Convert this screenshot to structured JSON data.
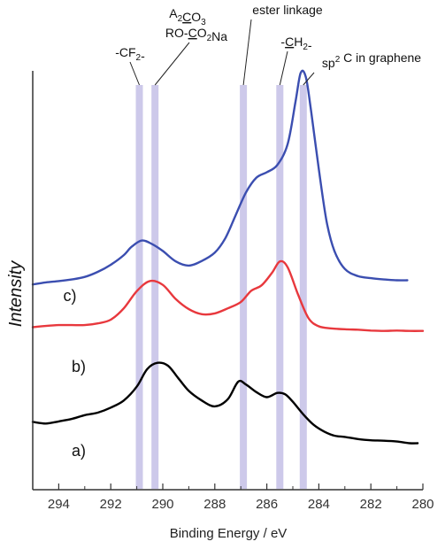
{
  "chart_data": {
    "type": "line",
    "xlabel": "Binding Energy / eV",
    "ylabel": "Intensity",
    "x_reversed": true,
    "xlim": [
      295,
      280
    ],
    "ylim": [
      0,
      1
    ],
    "x_ticks": [
      "294",
      "292",
      "290",
      "288",
      "286",
      "284",
      "282",
      "280"
    ],
    "x_tick_values": [
      294,
      292,
      290,
      288,
      286,
      284,
      282,
      280
    ],
    "bands": [
      {
        "label_parts": [
          [
            "-CF",
            ""
          ],
          [
            "2",
            "sub"
          ],
          [
            "-",
            ""
          ]
        ],
        "x": 290.9
      },
      {
        "label_parts": [
          [
            "RO-",
            ""
          ],
          [
            "C",
            "u"
          ],
          [
            "O",
            ""
          ],
          [
            "2",
            "sub"
          ],
          [
            "Na",
            ""
          ]
        ],
        "x": 290.3
      },
      {
        "label_parts": [
          [
            "A",
            ""
          ],
          [
            "2",
            "sub"
          ],
          [
            "C",
            "u"
          ],
          [
            "O",
            ""
          ],
          [
            "3",
            "sub"
          ]
        ],
        "x": 290.3,
        "line": false
      },
      {
        "label_parts": [
          [
            "ester linkage",
            ""
          ]
        ],
        "x": 286.9
      },
      {
        "label_parts": [
          [
            "-",
            ""
          ],
          [
            "C",
            "u"
          ],
          [
            "H",
            ""
          ],
          [
            "2",
            "sub"
          ],
          [
            "-",
            ""
          ]
        ],
        "x": 285.5
      },
      {
        "label_parts": [
          [
            "sp",
            ""
          ],
          [
            "2",
            "sup"
          ],
          [
            " C in graphene",
            ""
          ]
        ],
        "x": 284.6
      }
    ],
    "series": [
      {
        "label": "a)",
        "color": "#000000",
        "x": [
          295.0,
          294.5,
          294.0,
          293.5,
          293.0,
          292.5,
          292.0,
          291.5,
          291.0,
          290.6,
          290.2,
          289.8,
          289.4,
          289.0,
          288.5,
          288.0,
          287.5,
          287.1,
          286.8,
          286.4,
          286.0,
          285.6,
          285.3,
          285.0,
          284.6,
          284.2,
          283.8,
          283.4,
          283.0,
          282.5,
          282.0,
          281.5,
          281.0,
          280.5,
          280.2
        ],
        "y": [
          0.162,
          0.158,
          0.163,
          0.169,
          0.178,
          0.184,
          0.196,
          0.213,
          0.246,
          0.288,
          0.303,
          0.296,
          0.266,
          0.236,
          0.213,
          0.199,
          0.216,
          0.258,
          0.251,
          0.233,
          0.221,
          0.231,
          0.228,
          0.21,
          0.18,
          0.155,
          0.139,
          0.129,
          0.126,
          0.121,
          0.118,
          0.117,
          0.115,
          0.111,
          0.111
        ]
      },
      {
        "label": "b)",
        "color": "#e8383d",
        "x": [
          295.0,
          294.5,
          294.0,
          293.5,
          293.0,
          292.5,
          292.0,
          291.5,
          291.0,
          290.5,
          290.0,
          289.5,
          289.0,
          288.5,
          288.0,
          287.5,
          287.0,
          286.6,
          286.2,
          285.8,
          285.5,
          285.2,
          284.8,
          284.4,
          284.0,
          283.5,
          283.0,
          282.5,
          282.0,
          281.5,
          281.0,
          280.5,
          280.0
        ],
        "y": [
          0.388,
          0.391,
          0.393,
          0.393,
          0.393,
          0.397,
          0.406,
          0.433,
          0.474,
          0.498,
          0.489,
          0.455,
          0.431,
          0.419,
          0.421,
          0.433,
          0.448,
          0.475,
          0.488,
          0.518,
          0.545,
          0.531,
          0.466,
          0.41,
          0.39,
          0.385,
          0.383,
          0.382,
          0.38,
          0.379,
          0.38,
          0.379,
          0.379
        ]
      },
      {
        "label": "c)",
        "color": "#3b4eb0",
        "x": [
          295.0,
          294.5,
          294.0,
          293.5,
          293.0,
          292.5,
          292.0,
          291.5,
          291.2,
          290.8,
          290.4,
          290.0,
          289.5,
          289.0,
          288.5,
          288.0,
          287.6,
          287.2,
          286.8,
          286.4,
          286.0,
          285.6,
          285.2,
          284.9,
          284.7,
          284.5,
          284.3,
          284.0,
          283.7,
          283.4,
          283.0,
          282.5,
          282.0,
          281.5,
          281.0,
          280.6
        ],
        "y": [
          0.49,
          0.495,
          0.498,
          0.502,
          0.508,
          0.52,
          0.537,
          0.56,
          0.58,
          0.595,
          0.586,
          0.57,
          0.545,
          0.535,
          0.546,
          0.566,
          0.6,
          0.655,
          0.71,
          0.745,
          0.758,
          0.775,
          0.825,
          0.925,
          0.995,
          0.985,
          0.905,
          0.765,
          0.64,
          0.57,
          0.527,
          0.51,
          0.505,
          0.502,
          0.5,
          0.5
        ]
      }
    ]
  }
}
